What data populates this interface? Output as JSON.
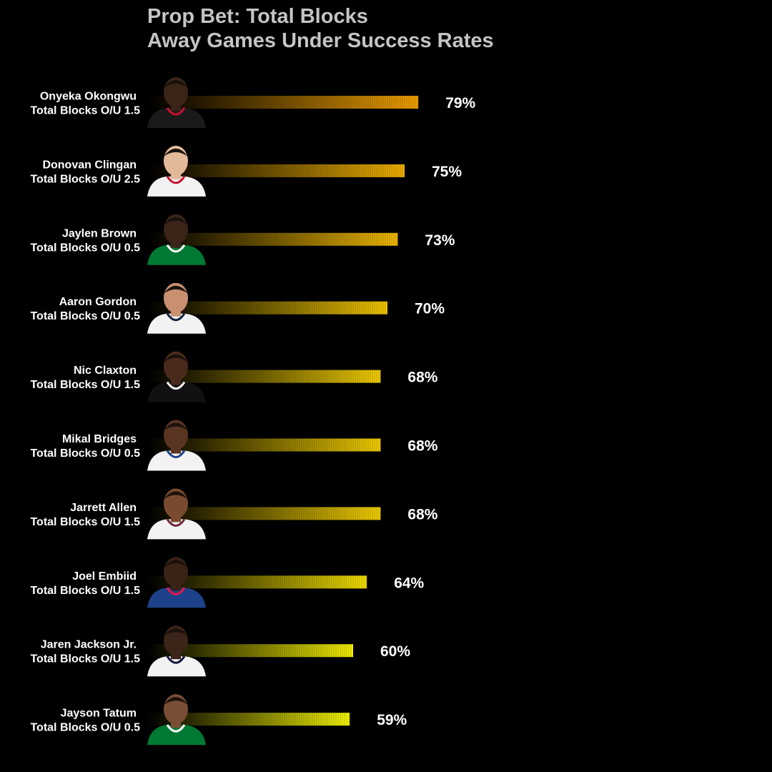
{
  "title": {
    "line1": "Prop Bet: Total Blocks",
    "line2": "Away Games Under Success Rates"
  },
  "colors": {
    "background": "#000000",
    "title": "#c4c4c4",
    "label": "#ffffff",
    "bar_start": "#000000",
    "bar_end_high": "#f0a000",
    "bar_end_low": "#f5f500"
  },
  "chart_data": {
    "type": "bar",
    "orientation": "horizontal",
    "title": "Prop Bet: Total Blocks\nAway Games Under Success Rates",
    "xlabel": "",
    "ylabel": "",
    "xlim": [
      0,
      100
    ],
    "grid": false,
    "legend": "none",
    "categories": [
      "Onyeka Okongwu",
      "Donovan Clingan",
      "Jaylen Brown",
      "Aaron Gordon",
      "Nic Claxton",
      "Mikal Bridges",
      "Jarrett Allen",
      "Joel Embiid",
      "Jaren Jackson Jr.",
      "Jayson Tatum"
    ],
    "sublabels": [
      "Total Blocks O/U 1.5",
      "Total Blocks O/U 2.5",
      "Total Blocks O/U 0.5",
      "Total Blocks O/U 0.5",
      "Total Blocks O/U 1.5",
      "Total Blocks O/U 0.5",
      "Total Blocks O/U 1.5",
      "Total Blocks O/U 1.5",
      "Total Blocks O/U 1.5",
      "Total Blocks O/U 0.5"
    ],
    "values": [
      79,
      75,
      73,
      70,
      68,
      68,
      68,
      64,
      60,
      59
    ],
    "value_labels": [
      "79%",
      "75%",
      "73%",
      "70%",
      "68%",
      "68%",
      "68%",
      "64%",
      "60%",
      "59%"
    ],
    "headshot_icons": [
      {
        "jersey": "#1a1a1a",
        "trim": "#c8102e",
        "skin": "#3b2418"
      },
      {
        "jersey": "#f2f2f2",
        "trim": "#c8102e",
        "skin": "#e3b99a"
      },
      {
        "jersey": "#007a33",
        "trim": "#ffffff",
        "skin": "#3b2418"
      },
      {
        "jersey": "#f2f2f2",
        "trim": "#0e2240",
        "skin": "#c89070"
      },
      {
        "jersey": "#111111",
        "trim": "#ffffff",
        "skin": "#4a2a1c"
      },
      {
        "jersey": "#f2f2f2",
        "trim": "#1d428a",
        "skin": "#5a3522"
      },
      {
        "jersey": "#f2f2f2",
        "trim": "#6f263d",
        "skin": "#7a4a30"
      },
      {
        "jersey": "#1d428a",
        "trim": "#ed174c",
        "skin": "#3a2216"
      },
      {
        "jersey": "#f2f2f2",
        "trim": "#12173f",
        "skin": "#3b2418"
      },
      {
        "jersey": "#007a33",
        "trim": "#ffffff",
        "skin": "#7a4e34"
      }
    ]
  }
}
